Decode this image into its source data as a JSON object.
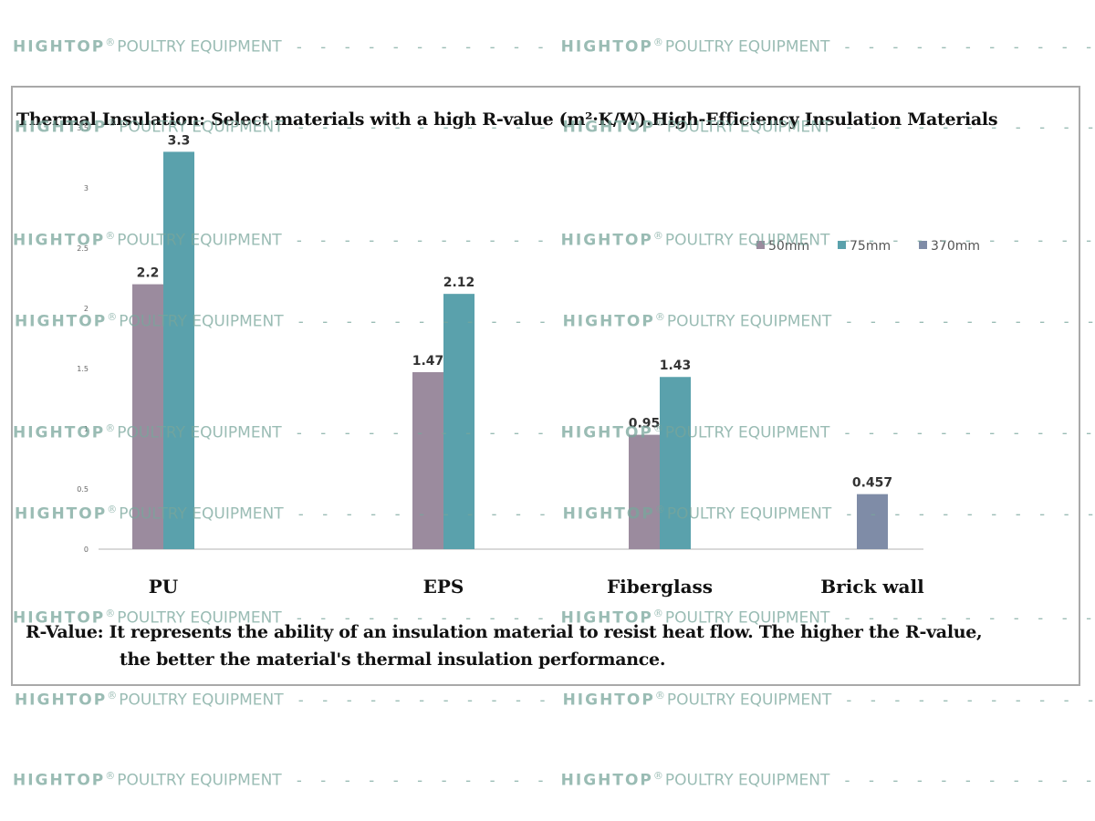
{
  "chart_data": {
    "type": "bar",
    "title": "Thermal Insulation: Select materials with a high R-value (m²·K/W).High-Efficiency Insulation Materials",
    "categories": [
      "PU",
      "EPS",
      "Fiberglass",
      "Brick wall"
    ],
    "series": [
      {
        "name": "50mm",
        "color": "#9b8b9e",
        "values": [
          2.2,
          1.47,
          0.95,
          null
        ],
        "labels": [
          "2.2",
          "1.47",
          "0.95",
          ""
        ]
      },
      {
        "name": "75mm",
        "color": "#5aa1ac",
        "values": [
          3.3,
          2.12,
          1.43,
          null
        ],
        "labels": [
          "3.3",
          "2.12",
          "1.43",
          ""
        ]
      },
      {
        "name": "370mm",
        "color": "#7f8ca7",
        "values": [
          null,
          null,
          null,
          0.457
        ],
        "labels": [
          "",
          "",
          "",
          "0.457"
        ]
      }
    ],
    "xlabel": "",
    "ylabel": "",
    "ylim": [
      0,
      3.5
    ],
    "yticks": [
      "0",
      "0.5",
      "1",
      "1.5",
      "2",
      "2.5",
      "3",
      "3.5"
    ],
    "grid": false,
    "legend": "top-right"
  },
  "footnote": {
    "line1": "R-Value: It represents the ability of an insulation material to resist heat flow. The higher the R-value,",
    "line2": "the better the material's thermal insulation performance."
  },
  "watermark": {
    "brand": "HIGHTOP",
    "registered": "®",
    "text": "POULTRY EQUIPMENT",
    "dash": "- - - - - - - - - - -"
  }
}
